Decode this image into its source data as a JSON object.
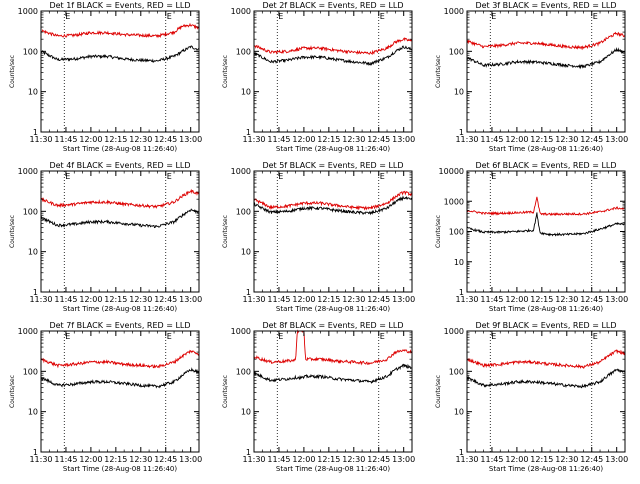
{
  "chart_data": {
    "type": "line",
    "x_tick_labels": [
      "11:30",
      "11:45",
      "12:00",
      "12:15",
      "12:30",
      "12:45",
      "13:00"
    ],
    "xlim_minutes_since_11_30": [
      0,
      95
    ],
    "xlabel": "Start Time (28-Aug-08 11:26:40)",
    "ylabel": "Counts/sec",
    "y_scale": "log",
    "series_colors": {
      "Events": "#000000",
      "LLD": "#dd0000"
    },
    "marker_label": "E",
    "marker_lines_time": [
      "11:44",
      "12:45"
    ],
    "panels": [
      {
        "title": "Det 1f BLACK = Events, RED = LLD",
        "ylim": [
          1,
          1000
        ],
        "y_tick_labels": [
          "1000",
          "100",
          "10",
          "1"
        ],
        "times": [
          "11:30",
          "11:40",
          "11:50",
          "12:00",
          "12:10",
          "12:20",
          "12:30",
          "12:40",
          "12:50",
          "12:55",
          "13:00",
          "13:05"
        ],
        "series": [
          {
            "name": "Events",
            "values": [
              100,
              62,
              65,
              75,
              75,
              65,
              60,
              58,
              75,
              100,
              130,
              110
            ]
          },
          {
            "name": "LLD",
            "values": [
              330,
              240,
              250,
              290,
              290,
              260,
              250,
              240,
              300,
              420,
              450,
              380
            ]
          }
        ]
      },
      {
        "title": "Det 2f BLACK = Events, RED = LLD",
        "ylim": [
          1,
          1000
        ],
        "y_tick_labels": [
          "1000",
          "100",
          "10",
          "1"
        ],
        "times": [
          "11:30",
          "11:40",
          "11:50",
          "12:00",
          "12:10",
          "12:20",
          "12:30",
          "12:40",
          "12:50",
          "12:55",
          "13:00",
          "13:05"
        ],
        "series": [
          {
            "name": "Events",
            "values": [
              90,
              55,
              60,
              72,
              72,
              62,
              55,
              50,
              70,
              100,
              130,
              110
            ]
          },
          {
            "name": "LLD",
            "values": [
              140,
              95,
              100,
              120,
              120,
              105,
              95,
              90,
              120,
              170,
              200,
              180
            ]
          }
        ]
      },
      {
        "title": "Det 3f BLACK = Events, RED = LLD",
        "ylim": [
          1,
          1000
        ],
        "y_tick_labels": [
          "1000",
          "100",
          "10",
          "1"
        ],
        "times": [
          "11:30",
          "11:40",
          "11:50",
          "12:00",
          "12:10",
          "12:20",
          "12:30",
          "12:40",
          "12:50",
          "12:55",
          "13:00",
          "13:05"
        ],
        "series": [
          {
            "name": "Events",
            "values": [
              70,
              45,
              48,
              55,
              55,
              50,
              45,
              42,
              55,
              80,
              110,
              95
            ]
          },
          {
            "name": "LLD",
            "values": [
              180,
              130,
              140,
              160,
              160,
              145,
              130,
              125,
              160,
              220,
              280,
              240
            ]
          }
        ]
      },
      {
        "title": "Det 4f BLACK = Events, RED = LLD",
        "ylim": [
          1,
          1000
        ],
        "y_tick_labels": [
          "1000",
          "100",
          "10",
          "1"
        ],
        "times": [
          "11:30",
          "11:40",
          "11:50",
          "12:00",
          "12:10",
          "12:20",
          "12:30",
          "12:40",
          "12:50",
          "12:55",
          "13:00",
          "13:05"
        ],
        "series": [
          {
            "name": "Events",
            "values": [
              70,
              45,
              48,
              55,
              55,
              50,
              45,
              42,
              55,
              80,
              110,
              95
            ]
          },
          {
            "name": "LLD",
            "values": [
              200,
              140,
              150,
              170,
              170,
              150,
              140,
              130,
              170,
              240,
              320,
              270
            ]
          }
        ]
      },
      {
        "title": "Det 5f BLACK = Events, RED = LLD",
        "ylim": [
          1,
          1000
        ],
        "y_tick_labels": [
          "1000",
          "100",
          "10",
          "1"
        ],
        "times": [
          "11:30",
          "11:40",
          "11:50",
          "12:00",
          "12:10",
          "12:20",
          "12:30",
          "12:40",
          "12:50",
          "12:55",
          "13:00",
          "13:05"
        ],
        "series": [
          {
            "name": "Events",
            "values": [
              150,
              95,
              100,
              120,
              120,
              105,
              95,
              90,
              120,
              170,
              220,
              190
            ]
          },
          {
            "name": "LLD",
            "values": [
              200,
              125,
              135,
              160,
              160,
              140,
              125,
              120,
              160,
              230,
              300,
              260
            ]
          }
        ]
      },
      {
        "title": "Det 6f BLACK = Events, RED = LLD",
        "ylim": [
          1,
          10000
        ],
        "y_tick_labels": [
          "10000",
          "1000",
          "100",
          "10",
          "1"
        ],
        "times": [
          "11:30",
          "11:40",
          "11:50",
          "12:00",
          "12:10",
          "12:12",
          "12:13",
          "12:14",
          "12:20",
          "12:30",
          "12:40",
          "12:50",
          "13:00",
          "13:05"
        ],
        "series": [
          {
            "name": "Events",
            "values": [
              130,
              95,
              95,
              100,
              110,
              400,
              180,
              90,
              80,
              80,
              85,
              120,
              180,
              170
            ]
          },
          {
            "name": "LLD",
            "values": [
              500,
              400,
              400,
              420,
              440,
              1400,
              700,
              380,
              370,
              380,
              380,
              450,
              600,
              550
            ]
          }
        ]
      },
      {
        "title": "Det 7f BLACK = Events, RED = LLD",
        "ylim": [
          1,
          1000
        ],
        "y_tick_labels": [
          "1000",
          "100",
          "10",
          "1"
        ],
        "times": [
          "11:30",
          "11:40",
          "11:50",
          "12:00",
          "12:10",
          "12:20",
          "12:30",
          "12:40",
          "12:50",
          "12:55",
          "13:00",
          "13:05"
        ],
        "series": [
          {
            "name": "Events",
            "values": [
              70,
              45,
              48,
              55,
              55,
              50,
              45,
              42,
              55,
              80,
              110,
              95
            ]
          },
          {
            "name": "LLD",
            "values": [
              200,
              140,
              150,
              170,
              170,
              150,
              140,
              130,
              170,
              240,
              320,
              270
            ]
          }
        ]
      },
      {
        "title": "Det 8f BLACK = Events, RED = LLD",
        "ylim": [
          1,
          1000
        ],
        "y_tick_labels": [
          "1000",
          "100",
          "10",
          "1"
        ],
        "times": [
          "11:30",
          "11:40",
          "11:50",
          "11:55",
          "11:56",
          "12:00",
          "12:01",
          "12:10",
          "12:20",
          "12:30",
          "12:40",
          "12:50",
          "12:55",
          "13:00",
          "13:05"
        ],
        "series": [
          {
            "name": "Events",
            "values": [
              90,
              60,
              65,
              70,
              70,
              70,
              75,
              75,
              65,
              60,
              55,
              75,
              110,
              140,
              120
            ]
          },
          {
            "name": "LLD",
            "values": [
              230,
              170,
              180,
              190,
              1000,
              1000,
              200,
              200,
              180,
              170,
              160,
              200,
              300,
              330,
              300
            ]
          }
        ]
      },
      {
        "title": "Det 9f BLACK = Events, RED = LLD",
        "ylim": [
          1,
          1000
        ],
        "y_tick_labels": [
          "1000",
          "100",
          "10",
          "1"
        ],
        "times": [
          "11:30",
          "11:40",
          "11:50",
          "12:00",
          "12:10",
          "12:20",
          "12:30",
          "12:40",
          "12:50",
          "12:55",
          "13:00",
          "13:05"
        ],
        "series": [
          {
            "name": "Events",
            "values": [
              70,
              45,
              48,
              55,
              55,
              50,
              45,
              42,
              55,
              80,
              110,
              95
            ]
          },
          {
            "name": "LLD",
            "values": [
              200,
              140,
              150,
              170,
              170,
              150,
              140,
              130,
              170,
              240,
              320,
              270
            ]
          }
        ]
      }
    ]
  }
}
